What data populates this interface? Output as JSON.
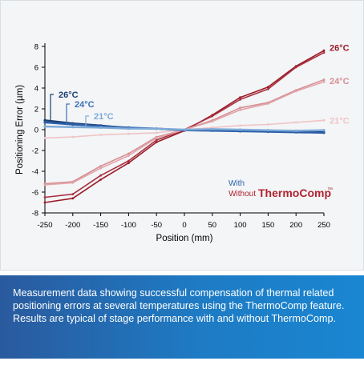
{
  "chart_data": {
    "type": "line",
    "title": "",
    "xlabel": "Position (mm)",
    "ylabel": "Positioning Error (µm)",
    "x": [
      -250,
      -200,
      -150,
      -100,
      -50,
      0,
      50,
      100,
      150,
      200,
      250
    ],
    "xlim": [
      -250,
      250
    ],
    "ylim": [
      -8,
      8
    ],
    "x_ticks": [
      "-250",
      "-200",
      "-150",
      "-100",
      "-50",
      "0",
      "50",
      "100",
      "150",
      "200",
      "250"
    ],
    "y_ticks": [
      "8",
      "6",
      "4",
      "2",
      "0",
      "-2",
      "-4",
      "-6",
      "-8"
    ],
    "grid": false,
    "series": [
      {
        "name": "26°C",
        "group": "without",
        "color": "#9a1b26",
        "values": [
          -7.0,
          -6.6,
          -4.8,
          -3.2,
          -1.2,
          -0.1,
          1.4,
          3.1,
          4.1,
          6.1,
          7.6
        ]
      },
      {
        "name": "26°C",
        "group": "without",
        "color": "#a83040",
        "values": [
          -6.5,
          -6.2,
          -4.4,
          -3.0,
          -1.0,
          0.0,
          1.3,
          2.9,
          3.9,
          6.0,
          7.4
        ]
      },
      {
        "name": "24°C",
        "group": "without",
        "color": "#d98f94",
        "values": [
          -5.2,
          -5.0,
          -3.5,
          -2.3,
          -0.7,
          0.0,
          0.9,
          2.1,
          2.6,
          3.8,
          4.8
        ]
      },
      {
        "name": "24°C",
        "group": "without",
        "color": "#e0a5a8",
        "values": [
          -5.3,
          -5.1,
          -3.7,
          -2.5,
          -0.8,
          0.0,
          0.8,
          1.9,
          2.5,
          3.7,
          4.6
        ]
      },
      {
        "name": "21°C",
        "group": "without",
        "color": "#f0c4c4",
        "values": [
          -0.8,
          -0.7,
          -0.5,
          -0.4,
          -0.3,
          0.0,
          0.2,
          0.4,
          0.5,
          0.7,
          0.9
        ]
      },
      {
        "name": "26°C",
        "group": "with",
        "color": "#1e3f73",
        "values": [
          0.9,
          0.6,
          0.4,
          0.15,
          0.1,
          -0.05,
          -0.05,
          -0.1,
          -0.15,
          -0.2,
          -0.25
        ]
      },
      {
        "name": "24°C",
        "group": "with",
        "color": "#2b5ea8",
        "values": [
          0.7,
          0.5,
          0.35,
          0.2,
          0.1,
          -0.05,
          -0.1,
          -0.15,
          -0.2,
          -0.25,
          -0.3
        ]
      },
      {
        "name": "21°C",
        "group": "with",
        "color": "#7eaad8",
        "values": [
          0.3,
          0.25,
          0.2,
          0.1,
          0.1,
          0.0,
          0.05,
          0.0,
          -0.05,
          -0.1,
          -0.05
        ]
      }
    ],
    "end_labels": [
      {
        "text": "26°C",
        "color": "#9a1b26",
        "y": 7.9
      },
      {
        "text": "24°C",
        "color": "#d98f94",
        "y": 4.7
      },
      {
        "text": "21°C",
        "color": "#f0c4c4",
        "y": 0.9
      }
    ],
    "left_labels": [
      {
        "text": "26°C",
        "color": "#1e3f73"
      },
      {
        "text": "24°C",
        "color": "#3b6fb6"
      },
      {
        "text": "21°C",
        "color": "#7eaad8"
      }
    ],
    "legend": {
      "with_label": "With",
      "without_label": "Without",
      "brand": "ThermoComp",
      "trademark": "™",
      "with_color": "#2b5ea8",
      "without_color": "#b0242f"
    }
  },
  "caption": "Measurement data showing successful compensation of thermal related positioning errors at several temperatures using the ThermoComp feature. Results are typical of stage performance with and without ThermoComp."
}
